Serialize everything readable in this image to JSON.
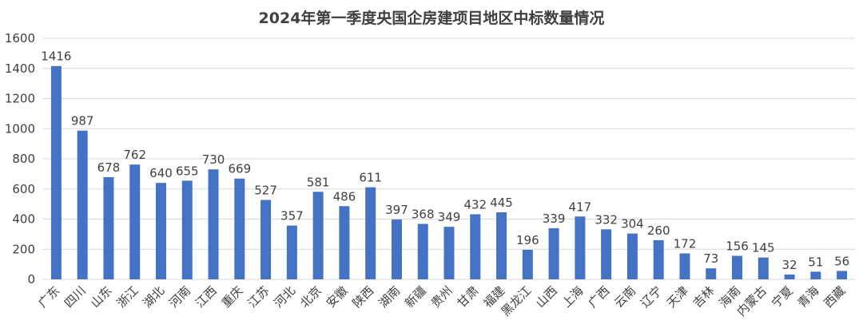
{
  "chart_data": {
    "type": "bar",
    "title": "2024年第一季度央国企房建项目地区中标数量情况",
    "xlabel": "",
    "ylabel": "",
    "ylim": [
      0,
      1600
    ],
    "yticks": [
      0,
      200,
      400,
      600,
      800,
      1000,
      1200,
      1400,
      1600
    ],
    "grid": true,
    "bar_color": "#4472c4",
    "categories": [
      "广东",
      "四川",
      "山东",
      "浙江",
      "湖北",
      "河南",
      "江西",
      "重庆",
      "江苏",
      "河北",
      "北京",
      "安徽",
      "陕西",
      "湖南",
      "新疆",
      "贵州",
      "甘肃",
      "福建",
      "黑龙江",
      "山西",
      "上海",
      "广西",
      "云南",
      "辽宁",
      "天津",
      "吉林",
      "海南",
      "内蒙古",
      "宁夏",
      "青海",
      "西藏"
    ],
    "values": [
      1416,
      987,
      678,
      762,
      640,
      655,
      730,
      669,
      527,
      357,
      581,
      486,
      611,
      397,
      368,
      349,
      432,
      445,
      196,
      339,
      417,
      332,
      304,
      260,
      172,
      73,
      156,
      145,
      32,
      51,
      56
    ]
  }
}
